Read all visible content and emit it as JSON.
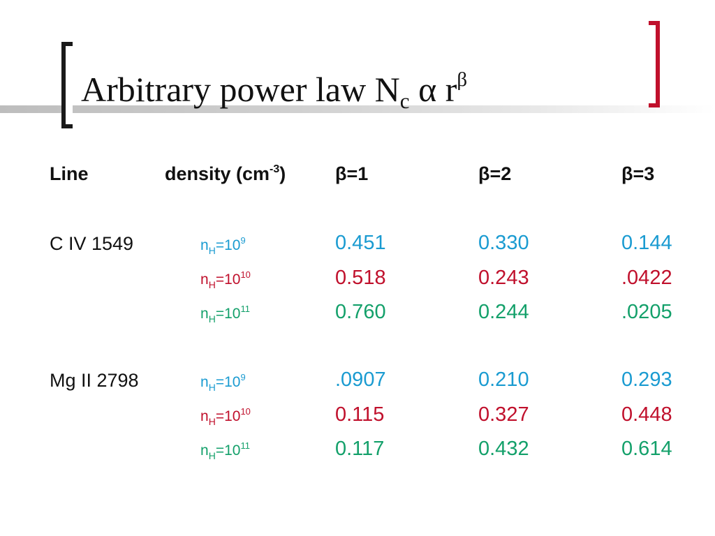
{
  "title": {
    "main": "Arbitrary power law  N",
    "sub": "c",
    "mid": " α r",
    "sup": "β"
  },
  "colors": {
    "left_bracket": "#1a1a1a",
    "right_bracket": "#c0102c",
    "title_bar": "#bdbdbd",
    "row_blue": "#1a9bd1",
    "row_red": "#c0102c",
    "row_green": "#13a06a"
  },
  "table": {
    "headers": {
      "line": "Line",
      "density_pre": "density (cm",
      "density_sup": "-3",
      "density_post": ")",
      "beta1": "β=1",
      "beta2": "β=2",
      "beta3": "β=3"
    },
    "groups": [
      {
        "line": "C IV 1549",
        "rows": [
          {
            "n": "n",
            "sub": "H",
            "eq": "=10",
            "exp": "9",
            "b1": "0.451",
            "b2": "0.330",
            "b3": "0.144"
          },
          {
            "n": "n",
            "sub": "H",
            "eq": "=10",
            "exp": "10",
            "b1": "0.518",
            "b2": "0.243",
            "b3": ".0422"
          },
          {
            "n": "n",
            "sub": "H",
            "eq": "=10",
            "exp": "11",
            "b1": "0.760",
            "b2": "0.244",
            "b3": ".0205"
          }
        ]
      },
      {
        "line": "Mg II 2798",
        "rows": [
          {
            "n": "n",
            "sub": "H",
            "eq": "=10",
            "exp": "9",
            "b1": ".0907",
            "b2": "0.210",
            "b3": "0.293"
          },
          {
            "n": "n",
            "sub": "H",
            "eq": "=10",
            "exp": "10",
            "b1": "0.115",
            "b2": "0.327",
            "b3": "0.448"
          },
          {
            "n": "n",
            "sub": "H",
            "eq": "=10",
            "exp": "11",
            "b1": "0.117",
            "b2": "0.432",
            "b3": "0.614"
          }
        ]
      }
    ]
  }
}
